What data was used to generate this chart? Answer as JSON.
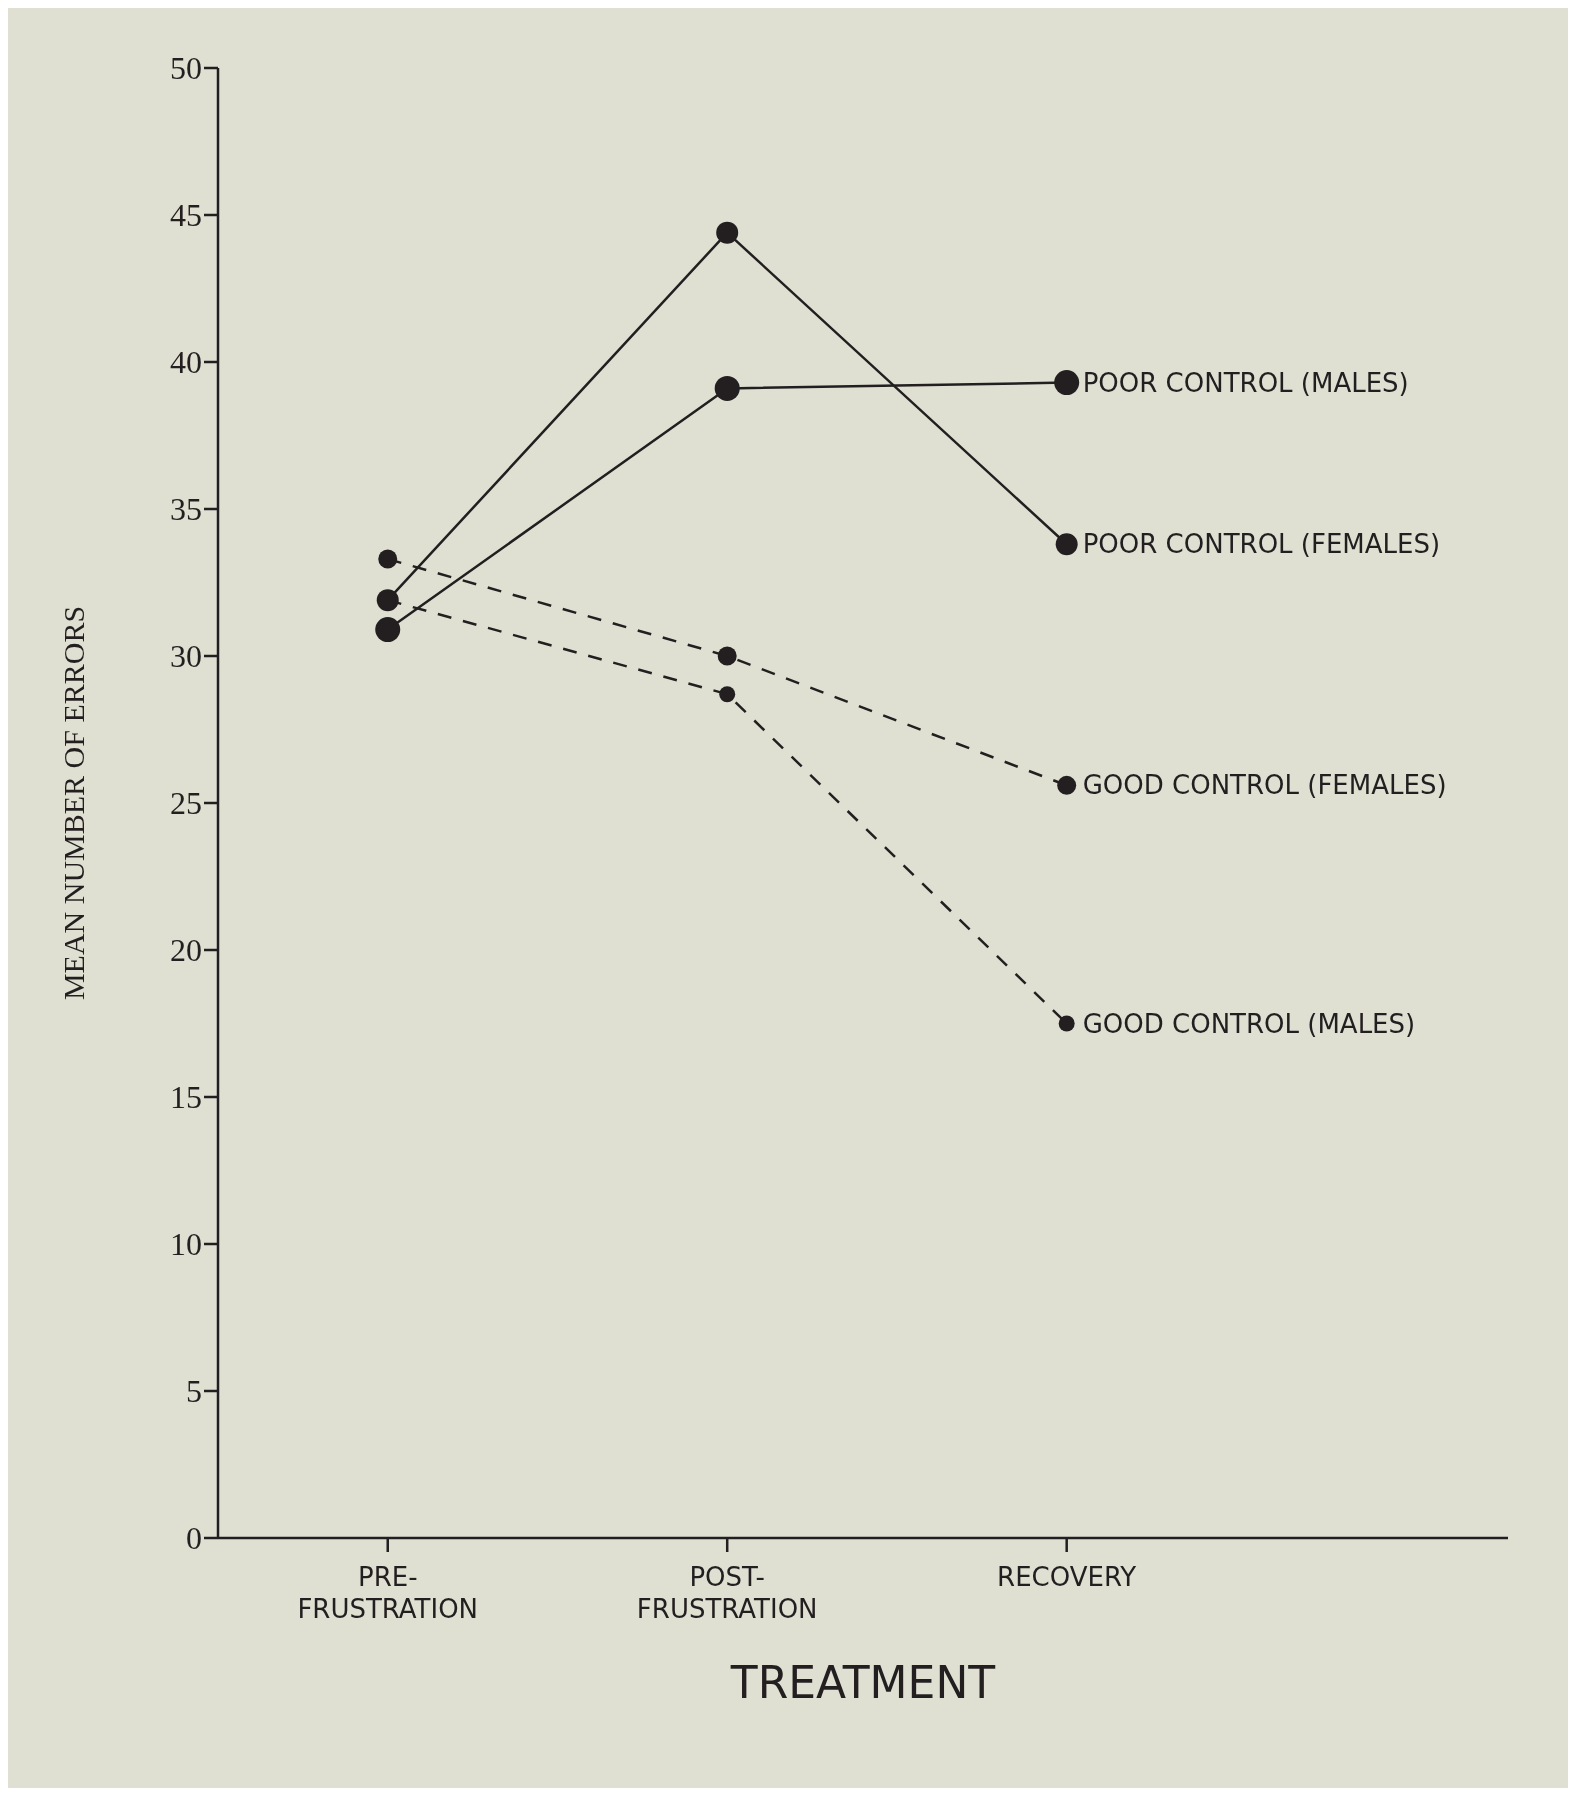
{
  "chart_data": {
    "type": "line",
    "xlabel": "TREATMENT",
    "ylabel": "MEAN NUMBER OF ERRORS",
    "categories": [
      "PRE-\nFRUSTRATION",
      "POST-\nFRUSTRATION",
      "RECOVERY"
    ],
    "series": [
      {
        "name": "POOR CONTROL (MALES)",
        "color": "#231f20",
        "line_style": "solid",
        "values": [
          30.9,
          39.1,
          39.3
        ]
      },
      {
        "name": "POOR CONTROL (FEMALES)",
        "color": "#231f20",
        "line_style": "solid",
        "values": [
          31.9,
          44.4,
          33.8
        ]
      },
      {
        "name": "GOOD CONTROL (FEMALES)",
        "color": "#231f20",
        "line_style": "dashed",
        "values": [
          33.3,
          30.0,
          25.6
        ]
      },
      {
        "name": "GOOD CONTROL (MALES)",
        "color": "#231f20",
        "line_style": "dashed",
        "values": [
          31.9,
          28.7,
          17.5
        ]
      }
    ],
    "ylim": [
      0,
      50
    ],
    "yticks": [
      0,
      5,
      10,
      15,
      20,
      25,
      30,
      35,
      40,
      45,
      50
    ],
    "marker": "circle",
    "legend": false,
    "grid": false
  }
}
